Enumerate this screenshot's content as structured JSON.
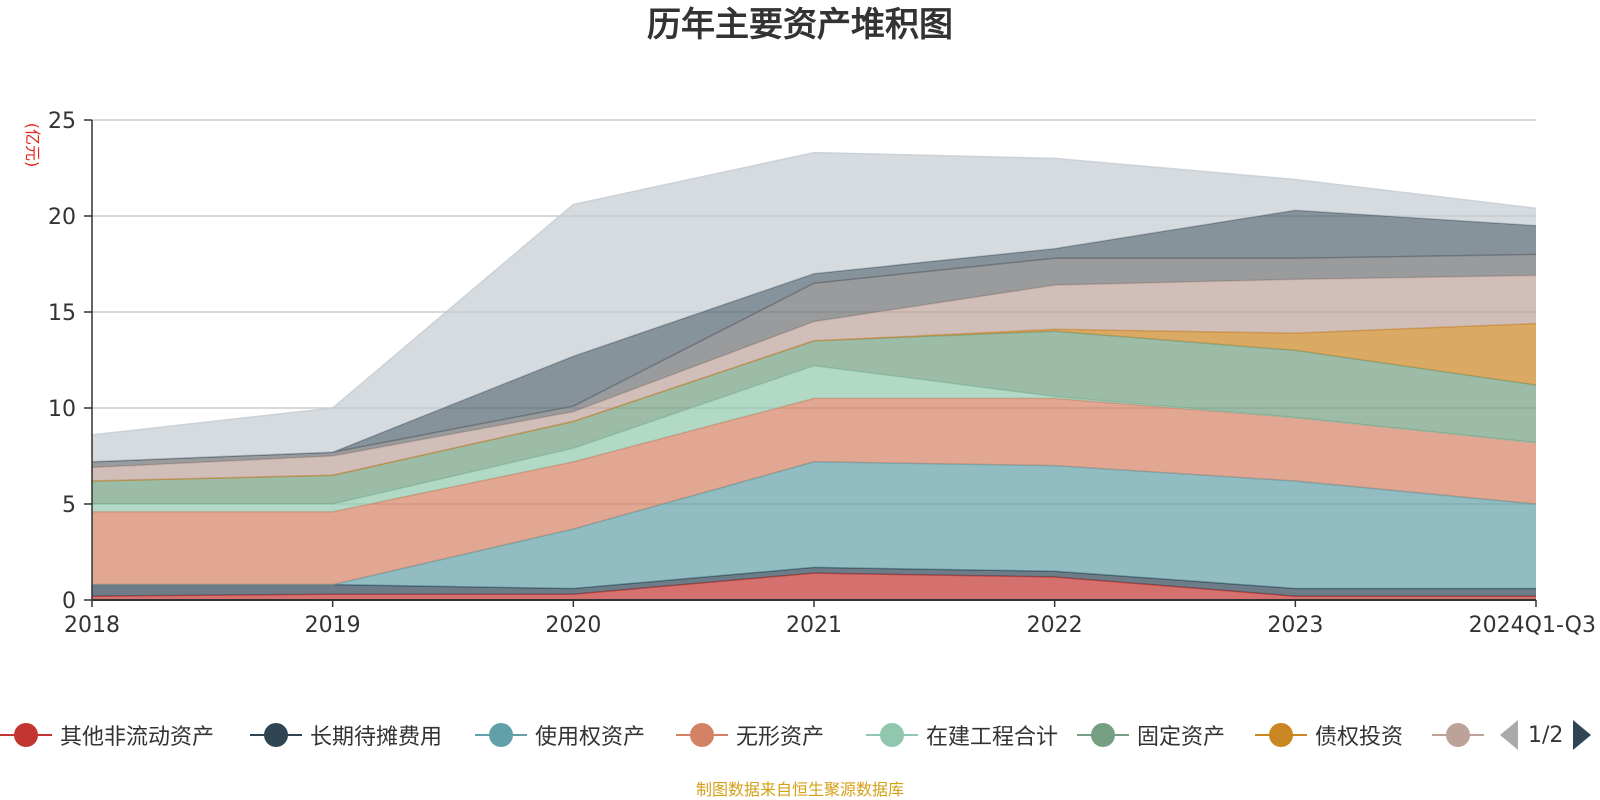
{
  "chart_data": {
    "type": "area",
    "stacked": true,
    "title": "历年主要资产堆积图",
    "ylabel": "(亿元)",
    "ylim": [
      0,
      25
    ],
    "yticks": [
      0,
      5,
      10,
      15,
      20,
      25
    ],
    "grid": true,
    "categories": [
      "2018",
      "2019",
      "2020",
      "2021",
      "2022",
      "2023",
      "2024Q1-Q3"
    ],
    "series": [
      {
        "name": "其他非流动资产",
        "color": "#c23531",
        "values": [
          0.2,
          0.3,
          0.3,
          1.4,
          1.2,
          0.2,
          0.2
        ]
      },
      {
        "name": "长期待摊费用",
        "color": "#2f4554",
        "values": [
          0.6,
          0.5,
          0.3,
          0.3,
          0.3,
          0.4,
          0.4
        ]
      },
      {
        "name": "使用权资产",
        "color": "#61a0a8",
        "values": [
          0.0,
          0.0,
          3.1,
          5.5,
          5.5,
          5.6,
          4.4
        ]
      },
      {
        "name": "无形资产",
        "color": "#d48265",
        "values": [
          3.8,
          3.8,
          3.5,
          3.3,
          3.5,
          3.3,
          3.2
        ]
      },
      {
        "name": "在建工程合计",
        "color": "#91c7ae",
        "values": [
          0.4,
          0.4,
          0.7,
          1.7,
          0.1,
          0.0,
          0.0
        ]
      },
      {
        "name": "固定资产",
        "color": "#749f83",
        "values": [
          1.2,
          1.5,
          1.4,
          1.3,
          3.4,
          3.5,
          3.0
        ]
      },
      {
        "name": "债权投资",
        "color": "#ca8622",
        "values": [
          0.0,
          0.0,
          0.0,
          0.0,
          0.1,
          0.9,
          3.2
        ]
      },
      {
        "name": "",
        "color": "#bda29a",
        "values": [
          0.7,
          1.0,
          0.5,
          1.0,
          2.3,
          2.8,
          2.5
        ]
      },
      {
        "name": "",
        "color": "#6e7074",
        "values": [
          0.3,
          0.2,
          0.3,
          2.0,
          1.4,
          1.1,
          1.1
        ]
      },
      {
        "name": "",
        "color": "#546570",
        "values": [
          0.0,
          0.0,
          2.6,
          0.5,
          0.5,
          2.5,
          1.5
        ]
      },
      {
        "name": "",
        "color": "#c4ccd3",
        "values": [
          1.4,
          2.3,
          7.9,
          6.3,
          4.7,
          1.6,
          0.9
        ]
      }
    ]
  },
  "legend": {
    "page_indicator": "1/2",
    "prev_icon": "triangle-left-icon",
    "next_icon": "triangle-right-icon"
  },
  "footer": {
    "source_text": "制图数据来自恒生聚源数据库"
  }
}
